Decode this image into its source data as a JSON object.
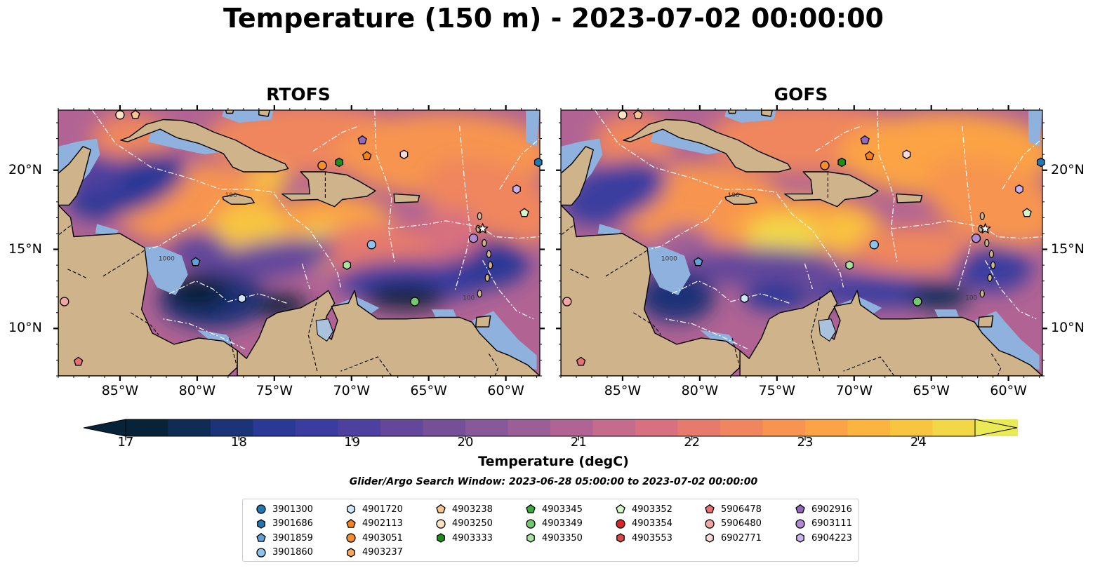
{
  "title": "Temperature (150 m) - 2023-07-02 00:00:00",
  "panels": [
    {
      "title": "RTOFS",
      "model": "rtofs"
    },
    {
      "title": "GOFS",
      "model": "gofs"
    }
  ],
  "map": {
    "lon_range": [
      -89,
      -57.8
    ],
    "lat_range": [
      7,
      23.8
    ],
    "lon_ticks": [
      {
        "value": -85,
        "label": "85°W"
      },
      {
        "value": -80,
        "label": "80°W"
      },
      {
        "value": -75,
        "label": "75°W"
      },
      {
        "value": -70,
        "label": "70°W"
      },
      {
        "value": -65,
        "label": "65°W"
      },
      {
        "value": -60,
        "label": "60°W"
      }
    ],
    "lat_ticks": [
      {
        "value": 20,
        "label": "20°N"
      },
      {
        "value": 15,
        "label": "15°N"
      },
      {
        "value": 10,
        "label": "10°N"
      }
    ],
    "colors": {
      "ocean_shelf": "#8eb1dd",
      "land": "#cfb38b",
      "coast": "#000000",
      "lake": "#a9c3df"
    }
  },
  "colorbar": {
    "label": "Temperature (degC)",
    "min": 16.75,
    "max": 24.5,
    "ticks": [
      {
        "value": 17,
        "label": "17"
      },
      {
        "value": 18,
        "label": "18"
      },
      {
        "value": 19,
        "label": "19"
      },
      {
        "value": 20,
        "label": "20"
      },
      {
        "value": 21,
        "label": "21"
      },
      {
        "value": 22,
        "label": "22"
      },
      {
        "value": 23,
        "label": "23"
      },
      {
        "value": 24,
        "label": "24"
      }
    ],
    "colors": [
      "#07233a",
      "#0f2d54",
      "#1b3377",
      "#2a3896",
      "#3b3c9f",
      "#4e409f",
      "#62479b",
      "#755099",
      "#895898",
      "#9c5e97",
      "#b16494",
      "#c56b8c",
      "#d7707f",
      "#e57a6d",
      "#ef865d",
      "#f7944f",
      "#fba345",
      "#fbb43e",
      "#f8c53f",
      "#f2d846",
      "#e9ea55"
    ]
  },
  "window_label": "Glider/Argo Search Window: 2023-06-28 05:00:00 to 2023-07-02 00:00:00",
  "contour_labels": [
    "100",
    "1000"
  ],
  "floats": [
    {
      "id": "3901300",
      "marker": "circle",
      "color": "#1f77b4",
      "lon": null,
      "lat": null
    },
    {
      "id": "3901686",
      "marker": "hexagon",
      "color": "#1f77b4",
      "lon": -57.9,
      "lat": 20.5
    },
    {
      "id": "3901859",
      "marker": "pentagon",
      "color": "#5fa2d8",
      "lon": -80.1,
      "lat": 14.2
    },
    {
      "id": "3901860",
      "marker": "circle",
      "color": "#8ec3ef",
      "lon": -68.7,
      "lat": 15.3
    },
    {
      "id": "4901720",
      "marker": "hexagon",
      "color": "#cfe6fb",
      "lon": -77.1,
      "lat": 11.9
    },
    {
      "id": "4902113",
      "marker": "pentagon",
      "color": "#f58216",
      "lon": -69,
      "lat": 20.9
    },
    {
      "id": "4903051",
      "marker": "circle",
      "color": "#f58f2d",
      "lon": -71.9,
      "lat": 20.3
    },
    {
      "id": "4903237",
      "marker": "hexagon",
      "color": "#f9a65a",
      "lon": null,
      "lat": null
    },
    {
      "id": "4903238",
      "marker": "pentagon",
      "color": "#fbc48e",
      "lon": -84,
      "lat": 23.5
    },
    {
      "id": "4903250",
      "marker": "circle",
      "color": "#fde2c4",
      "lon": -85,
      "lat": 23.5
    },
    {
      "id": "4903333",
      "marker": "hexagon",
      "color": "#1a8f1a",
      "lon": -70.8,
      "lat": 20.5
    },
    {
      "id": "4903345",
      "marker": "pentagon",
      "color": "#3bab3b",
      "lon": null,
      "lat": null
    },
    {
      "id": "4903349",
      "marker": "circle",
      "color": "#72c96e",
      "lon": -65.9,
      "lat": 11.7
    },
    {
      "id": "4903350",
      "marker": "hexagon",
      "color": "#a8e4a0",
      "lon": -70.3,
      "lat": 14
    },
    {
      "id": "4903352",
      "marker": "pentagon",
      "color": "#d3f7c8",
      "lon": -58.8,
      "lat": 17.3
    },
    {
      "id": "4903354",
      "marker": "circle",
      "color": "#d62728",
      "lon": null,
      "lat": null
    },
    {
      "id": "4903553",
      "marker": "hexagon",
      "color": "#e04848",
      "lon": null,
      "lat": null
    },
    {
      "id": "5906478",
      "marker": "pentagon",
      "color": "#ec6f6f",
      "lon": -87.7,
      "lat": 7.9
    },
    {
      "id": "5906480",
      "marker": "circle",
      "color": "#f3a6a6",
      "lon": -88.6,
      "lat": 11.7
    },
    {
      "id": "6902771",
      "marker": "hexagon",
      "color": "#fbd7d7",
      "lon": -66.6,
      "lat": 21
    },
    {
      "id": "6902916",
      "marker": "pentagon",
      "color": "#9467bd",
      "lon": -69.3,
      "lat": 21.9
    },
    {
      "id": "6903111",
      "marker": "circle",
      "color": "#b08ad6",
      "lon": -62.1,
      "lat": 15.7
    },
    {
      "id": "6904223",
      "marker": "hexagon",
      "color": "#cdb0ee",
      "lon": -59.3,
      "lat": 18.8
    }
  ]
}
